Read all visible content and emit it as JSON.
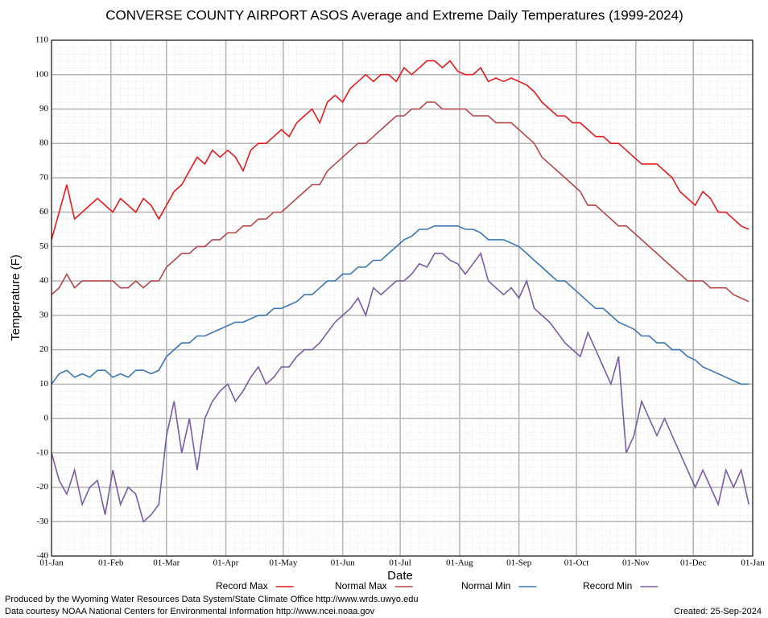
{
  "chart_data": {
    "type": "line",
    "title": "CONVERSE COUNTY AIRPORT ASOS Average and Extreme Daily Temperatures (1999-2024)",
    "x_label": "Date",
    "y_label": "Temperature (F)",
    "x": [
      0,
      4,
      8,
      12,
      16,
      20,
      24,
      28,
      32,
      36,
      40,
      44,
      48,
      52,
      56,
      60,
      64,
      68,
      72,
      76,
      80,
      84,
      88,
      92,
      96,
      100,
      104,
      108,
      112,
      116,
      120,
      124,
      128,
      132,
      136,
      140,
      144,
      148,
      152,
      156,
      160,
      164,
      168,
      172,
      176,
      180,
      184,
      188,
      192,
      196,
      200,
      204,
      208,
      212,
      216,
      220,
      224,
      228,
      232,
      236,
      240,
      244,
      248,
      252,
      256,
      260,
      264,
      268,
      272,
      276,
      280,
      284,
      288,
      292,
      296,
      300,
      304,
      308,
      312,
      316,
      320,
      324,
      328,
      332,
      336,
      340,
      344,
      348,
      352,
      356,
      360,
      364
    ],
    "xlim": [
      0,
      366
    ],
    "xticks": [
      {
        "value": 0,
        "label": "01-Jan"
      },
      {
        "value": 31,
        "label": "01-Feb"
      },
      {
        "value": 60,
        "label": "01-Mar"
      },
      {
        "value": 91,
        "label": "01-Apr"
      },
      {
        "value": 121,
        "label": "01-May"
      },
      {
        "value": 152,
        "label": "01-Jun"
      },
      {
        "value": 182,
        "label": "01-Jul"
      },
      {
        "value": 213,
        "label": "01-Aug"
      },
      {
        "value": 244,
        "label": "01-Sep"
      },
      {
        "value": 274,
        "label": "01-Oct"
      },
      {
        "value": 305,
        "label": "01-Nov"
      },
      {
        "value": 335,
        "label": "01-Dec"
      },
      {
        "value": 366,
        "label": "01-Jan"
      }
    ],
    "ylim": [
      -40,
      110
    ],
    "yticks": [
      -40,
      -30,
      -20,
      -10,
      0,
      10,
      20,
      30,
      40,
      50,
      60,
      70,
      80,
      90,
      100,
      110
    ],
    "grid": true,
    "legend": "bottom",
    "series": [
      {
        "name": "Record Max",
        "color": "#e8191c",
        "values": [
          52,
          60,
          68,
          58,
          60,
          62,
          64,
          62,
          60,
          64,
          62,
          60,
          64,
          62,
          58,
          62,
          66,
          68,
          72,
          76,
          74,
          78,
          76,
          78,
          76,
          72,
          78,
          80,
          80,
          82,
          84,
          82,
          86,
          88,
          90,
          86,
          92,
          94,
          92,
          96,
          98,
          100,
          98,
          100,
          100,
          98,
          102,
          100,
          102,
          104,
          104,
          102,
          104,
          101,
          100,
          100,
          102,
          98,
          99,
          98,
          99,
          98,
          97,
          95,
          92,
          90,
          88,
          88,
          86,
          86,
          84,
          82,
          82,
          80,
          80,
          78,
          76,
          74,
          74,
          74,
          72,
          70,
          66,
          64,
          62,
          66,
          64,
          60,
          60,
          58,
          56,
          55
        ]
      },
      {
        "name": "Normal Max",
        "color": "#b5474a",
        "values": [
          36,
          38,
          42,
          38,
          40,
          40,
          40,
          40,
          40,
          38,
          38,
          40,
          38,
          40,
          40,
          44,
          46,
          48,
          48,
          50,
          50,
          52,
          52,
          54,
          54,
          56,
          56,
          58,
          58,
          60,
          60,
          62,
          64,
          66,
          68,
          68,
          72,
          74,
          76,
          78,
          80,
          80,
          82,
          84,
          86,
          88,
          88,
          90,
          90,
          92,
          92,
          90,
          90,
          90,
          90,
          88,
          88,
          88,
          86,
          86,
          86,
          84,
          82,
          80,
          76,
          74,
          72,
          70,
          68,
          66,
          62,
          62,
          60,
          58,
          56,
          56,
          54,
          52,
          50,
          48,
          46,
          44,
          42,
          40,
          40,
          40,
          38,
          38,
          38,
          36,
          35,
          34
        ]
      },
      {
        "name": "Normal Min",
        "color": "#3c76b0",
        "values": [
          10,
          13,
          14,
          12,
          13,
          12,
          14,
          14,
          12,
          13,
          12,
          14,
          14,
          13,
          14,
          18,
          20,
          22,
          22,
          24,
          24,
          25,
          26,
          27,
          28,
          28,
          29,
          30,
          30,
          32,
          32,
          33,
          34,
          36,
          36,
          38,
          40,
          40,
          42,
          42,
          44,
          44,
          46,
          46,
          48,
          50,
          52,
          53,
          55,
          55,
          56,
          56,
          56,
          56,
          55,
          55,
          54,
          52,
          52,
          52,
          51,
          50,
          48,
          46,
          44,
          42,
          40,
          40,
          38,
          36,
          34,
          32,
          32,
          30,
          28,
          27,
          26,
          24,
          24,
          22,
          22,
          20,
          20,
          18,
          17,
          15,
          14,
          13,
          12,
          11,
          10,
          10
        ]
      },
      {
        "name": "Record Min",
        "color": "#7a5ba5",
        "values": [
          -10,
          -18,
          -22,
          -15,
          -25,
          -20,
          -18,
          -28,
          -15,
          -25,
          -20,
          -22,
          -30,
          -28,
          -25,
          -5,
          5,
          -10,
          0,
          -15,
          0,
          5,
          8,
          10,
          5,
          8,
          12,
          15,
          10,
          12,
          15,
          15,
          18,
          20,
          20,
          22,
          25,
          28,
          30,
          32,
          35,
          30,
          38,
          36,
          38,
          40,
          40,
          42,
          45,
          44,
          48,
          48,
          46,
          45,
          42,
          45,
          48,
          40,
          38,
          36,
          38,
          35,
          40,
          32,
          30,
          28,
          25,
          22,
          20,
          18,
          25,
          20,
          15,
          10,
          18,
          -10,
          -5,
          5,
          0,
          -5,
          0,
          -5,
          -10,
          -15,
          -20,
          -15,
          -20,
          -25,
          -15,
          -20,
          -15,
          -25
        ]
      }
    ],
    "footer": [
      "Produced by the Wyoming Water Resources Data System/State Climate Office http://www.wrds.uwyo.edu",
      "Data courtesy NOAA National Centers for Environmental Information http://www.ncei.noaa.gov"
    ],
    "created": "Created:  25-Sep-2024"
  }
}
